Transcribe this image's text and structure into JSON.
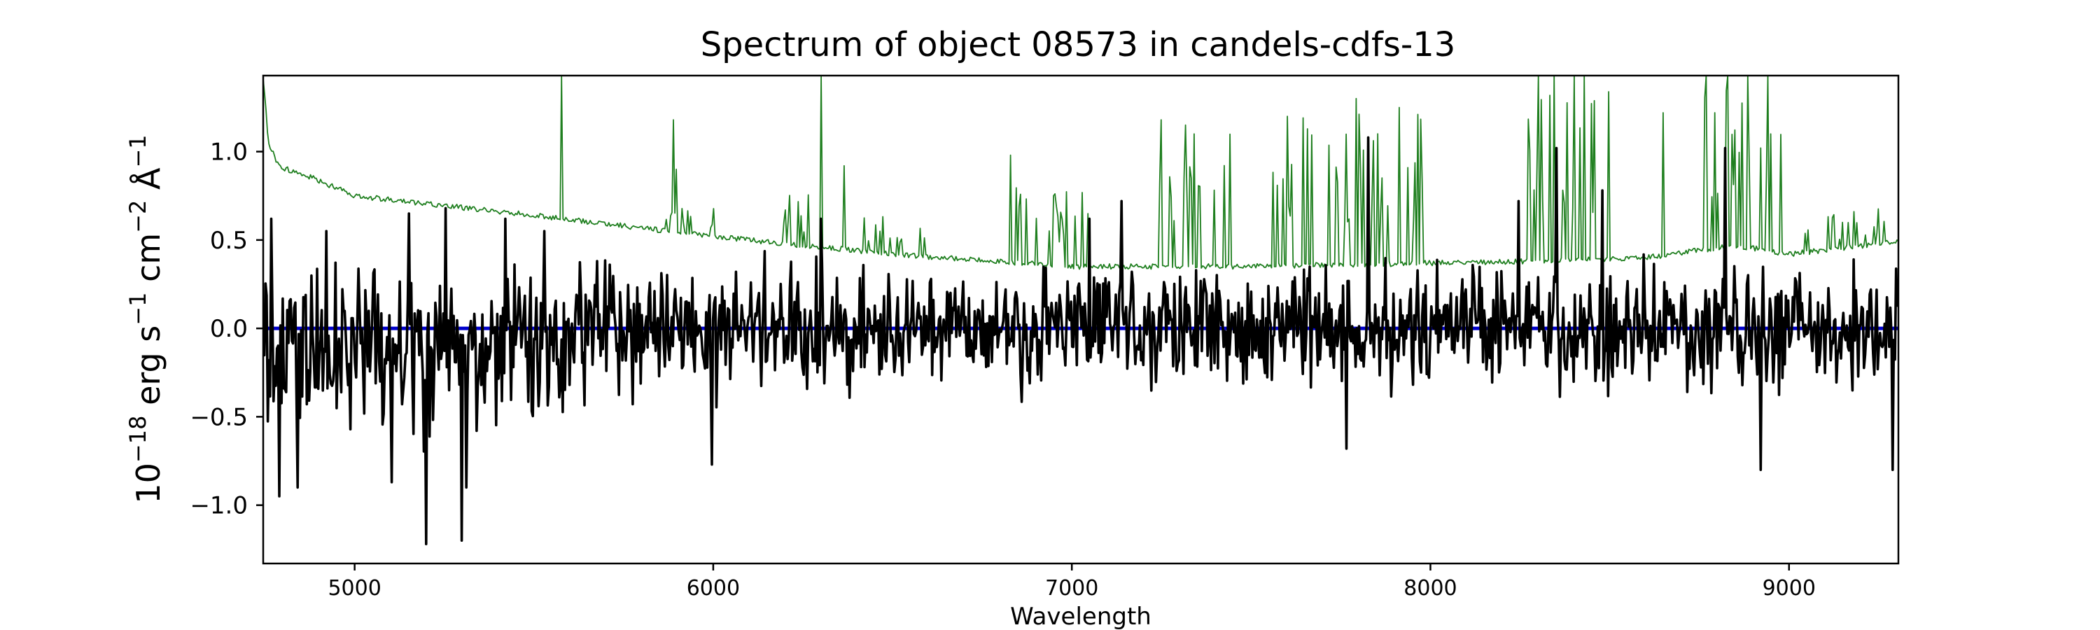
{
  "chart_data": {
    "type": "line",
    "title": "Spectrum of object 08573 in candels-cdfs-13",
    "xlabel": "Wavelength",
    "ylabel": {
      "base": "10",
      "exp": "−18",
      "unit1": " erg s",
      "exp1": "−1",
      "unit2": " cm",
      "exp2": "−2",
      "unit3": " Å",
      "exp3": "−1"
    },
    "xlim": [
      4745,
      9305
    ],
    "ylim": [
      -1.33,
      1.43
    ],
    "x_ticks": [
      {
        "value": 5000,
        "label": "5000"
      },
      {
        "value": 6000,
        "label": "6000"
      },
      {
        "value": 7000,
        "label": "7000"
      },
      {
        "value": 8000,
        "label": "8000"
      },
      {
        "value": 9000,
        "label": "9000"
      }
    ],
    "y_ticks": [
      {
        "value": 1.0,
        "label": "1.0"
      },
      {
        "value": 0.5,
        "label": "0.5"
      },
      {
        "value": 0.0,
        "label": "0.0"
      },
      {
        "value": -0.5,
        "label": "−0.5"
      },
      {
        "value": -1.0,
        "label": "−1.0"
      }
    ],
    "grid": false,
    "series": [
      {
        "key": "flux",
        "color": "#000000",
        "x_range": [
          4745,
          9305
        ],
        "noise_amplitude": 0.3,
        "spikes": [
          {
            "x": 4768,
            "y": 0.62
          },
          {
            "x": 4790,
            "y": -0.95
          },
          {
            "x": 4842,
            "y": -0.9
          },
          {
            "x": 4920,
            "y": 0.55
          },
          {
            "x": 5102,
            "y": -0.87
          },
          {
            "x": 5150,
            "y": 0.65
          },
          {
            "x": 5200,
            "y": -1.22
          },
          {
            "x": 5255,
            "y": 0.68
          },
          {
            "x": 5298,
            "y": -1.2
          },
          {
            "x": 5310,
            "y": -0.9
          },
          {
            "x": 5420,
            "y": 0.62
          },
          {
            "x": 5530,
            "y": 0.55
          },
          {
            "x": 5995,
            "y": -0.77
          },
          {
            "x": 6300,
            "y": 0.62
          },
          {
            "x": 7048,
            "y": 0.62
          },
          {
            "x": 7138,
            "y": 0.72
          },
          {
            "x": 7766,
            "y": -0.68
          },
          {
            "x": 7825,
            "y": 1.08
          },
          {
            "x": 8245,
            "y": 0.72
          },
          {
            "x": 8350,
            "y": 1.02
          },
          {
            "x": 8480,
            "y": 0.78
          },
          {
            "x": 8822,
            "y": 1.02
          },
          {
            "x": 8922,
            "y": -0.8
          },
          {
            "x": 9290,
            "y": -0.8
          }
        ]
      },
      {
        "key": "error",
        "color": "#1f7f1f",
        "x_range": [
          4745,
          9305
        ],
        "continuum": [
          {
            "x": 4745,
            "y": 1.42
          },
          {
            "x": 4760,
            "y": 1.05
          },
          {
            "x": 4790,
            "y": 0.91
          },
          {
            "x": 4850,
            "y": 0.88
          },
          {
            "x": 5000,
            "y": 0.75
          },
          {
            "x": 5500,
            "y": 0.64
          },
          {
            "x": 6000,
            "y": 0.52
          },
          {
            "x": 6500,
            "y": 0.42
          },
          {
            "x": 7000,
            "y": 0.35
          },
          {
            "x": 7500,
            "y": 0.35
          },
          {
            "x": 8000,
            "y": 0.37
          },
          {
            "x": 8300,
            "y": 0.38
          },
          {
            "x": 8600,
            "y": 0.4
          },
          {
            "x": 8850,
            "y": 0.47
          },
          {
            "x": 9000,
            "y": 0.42
          },
          {
            "x": 9305,
            "y": 0.49
          }
        ],
        "spikes": [
          {
            "x": 5577,
            "y": 1.43
          },
          {
            "x": 5890,
            "y": 1.18
          },
          {
            "x": 5896,
            "y": 0.9
          },
          {
            "x": 6300,
            "y": 1.43
          },
          {
            "x": 6364,
            "y": 0.92
          },
          {
            "x": 6830,
            "y": 0.98
          },
          {
            "x": 7250,
            "y": 1.18
          },
          {
            "x": 7316,
            "y": 1.15
          },
          {
            "x": 7341,
            "y": 1.1
          },
          {
            "x": 7600,
            "y": 1.2
          },
          {
            "x": 7794,
            "y": 1.3
          },
          {
            "x": 7914,
            "y": 1.25
          },
          {
            "x": 8300,
            "y": 1.43
          },
          {
            "x": 8345,
            "y": 1.43
          },
          {
            "x": 8400,
            "y": 1.43
          },
          {
            "x": 8430,
            "y": 1.43
          },
          {
            "x": 8650,
            "y": 1.22
          },
          {
            "x": 8770,
            "y": 1.43
          },
          {
            "x": 8830,
            "y": 1.43
          },
          {
            "x": 8885,
            "y": 1.43
          },
          {
            "x": 8943,
            "y": 1.43
          }
        ],
        "spike_bands": [
          {
            "from": 5860,
            "to": 6020,
            "count": 14,
            "peak": 0.18
          },
          {
            "from": 6180,
            "to": 6300,
            "count": 10,
            "peak": 0.3
          },
          {
            "from": 6400,
            "to": 6600,
            "count": 14,
            "peak": 0.22
          },
          {
            "from": 6820,
            "to": 7050,
            "count": 20,
            "peak": 0.45
          },
          {
            "from": 7240,
            "to": 7450,
            "count": 20,
            "peak": 0.75
          },
          {
            "from": 7560,
            "to": 8000,
            "count": 34,
            "peak": 0.85
          },
          {
            "from": 8270,
            "to": 8500,
            "count": 18,
            "peak": 0.95
          },
          {
            "from": 8760,
            "to": 8980,
            "count": 18,
            "peak": 0.95
          },
          {
            "from": 9000,
            "to": 9305,
            "count": 16,
            "peak": 0.2
          }
        ]
      },
      {
        "key": "zero",
        "color": "#0000cc",
        "values": [
          {
            "x": 4745,
            "y": 0.0
          },
          {
            "x": 9305,
            "y": 0.0
          }
        ]
      }
    ]
  }
}
